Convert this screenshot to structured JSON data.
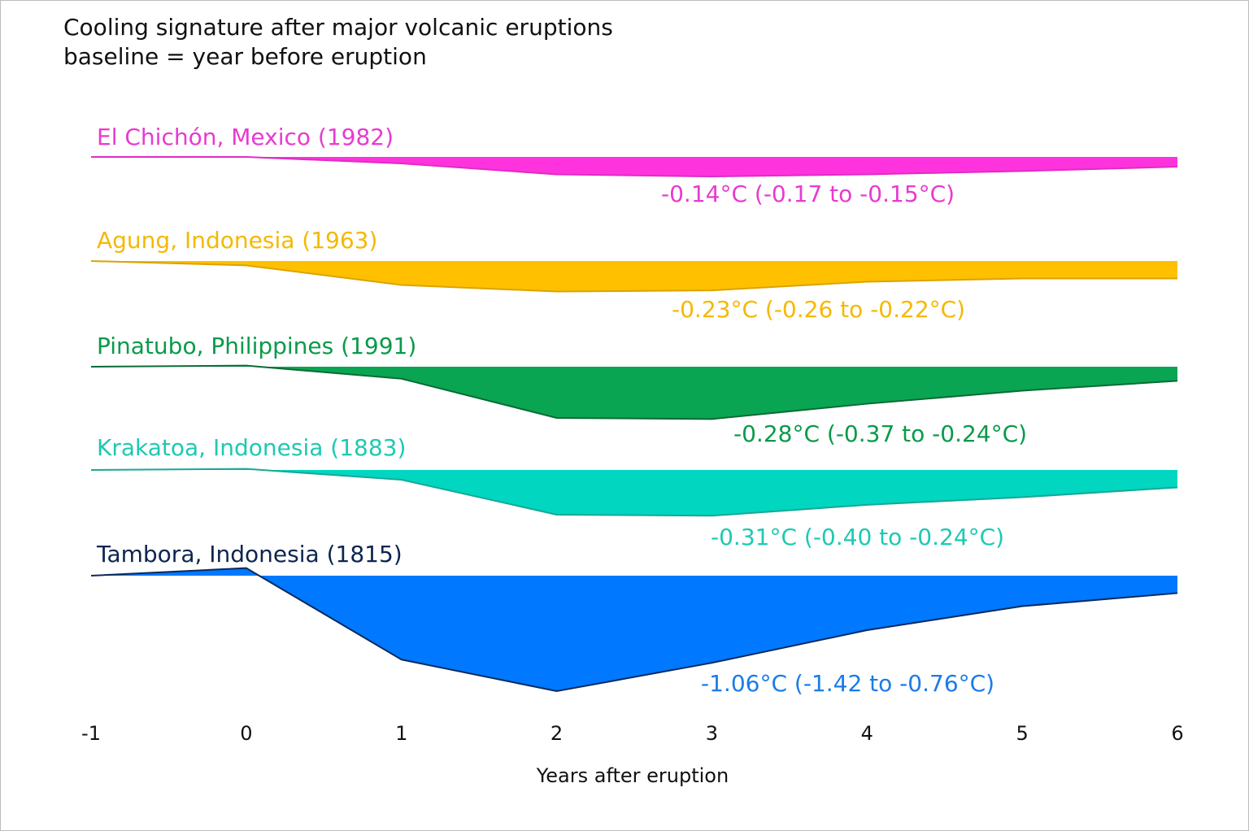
{
  "chart_data": {
    "type": "ridgeline",
    "title": "Cooling signature after major volcanic eruptions",
    "subtitle": "baseline = year before eruption",
    "x_label": "Years after eruption",
    "x": [
      -1,
      0,
      1,
      2,
      3,
      4,
      5,
      6
    ],
    "xlim": [
      -1,
      6
    ],
    "xticks": [
      -1,
      0,
      1,
      2,
      3,
      4,
      5,
      6
    ],
    "series": [
      {
        "name": "El Chichón, Mexico (1982)",
        "color": "#ff33dd",
        "line_color": "#e02cc4",
        "label_color": "#e83ad0",
        "values": [
          0,
          0,
          -0.06,
          -0.16,
          -0.18,
          -0.16,
          -0.13,
          -0.09
        ],
        "annotation": "-0.14°C (-0.17 to -0.15°C)"
      },
      {
        "name": "Agung, Indonesia (1963)",
        "color": "#ffc000",
        "line_color": "#dba300",
        "label_color": "#f5b800",
        "values": [
          0,
          -0.04,
          -0.22,
          -0.28,
          -0.27,
          -0.19,
          -0.16,
          -0.16
        ],
        "annotation": "-0.23°C (-0.26 to -0.22°C)"
      },
      {
        "name": "Pinatubo, Philippines (1991)",
        "color": "#0aa552",
        "line_color": "#0b6b35",
        "label_color": "#0a9a4a",
        "values": [
          0,
          0.01,
          -0.11,
          -0.47,
          -0.48,
          -0.34,
          -0.22,
          -0.13
        ],
        "annotation": "-0.28°C (-0.37 to -0.24°C)"
      },
      {
        "name": "Krakatoa, Indonesia  (1883)",
        "color": "#00d6c0",
        "line_color": "#17a896",
        "label_color": "#1ec9b3",
        "values": [
          0,
          0.01,
          -0.09,
          -0.41,
          -0.42,
          -0.32,
          -0.25,
          -0.16
        ],
        "annotation": "-0.31°C (-0.40 to -0.24°C)"
      },
      {
        "name": "Tambora, Indonesia (1815)",
        "color": "#0078ff",
        "line_color": "#0b2a5a",
        "label_color": "#0d2550",
        "annotation_color": "#1a7be8",
        "values": [
          0,
          0.07,
          -0.77,
          -1.06,
          -0.8,
          -0.5,
          -0.28,
          -0.16
        ],
        "annotation": "-1.06°C (-1.42 to -0.76°C)"
      }
    ]
  }
}
